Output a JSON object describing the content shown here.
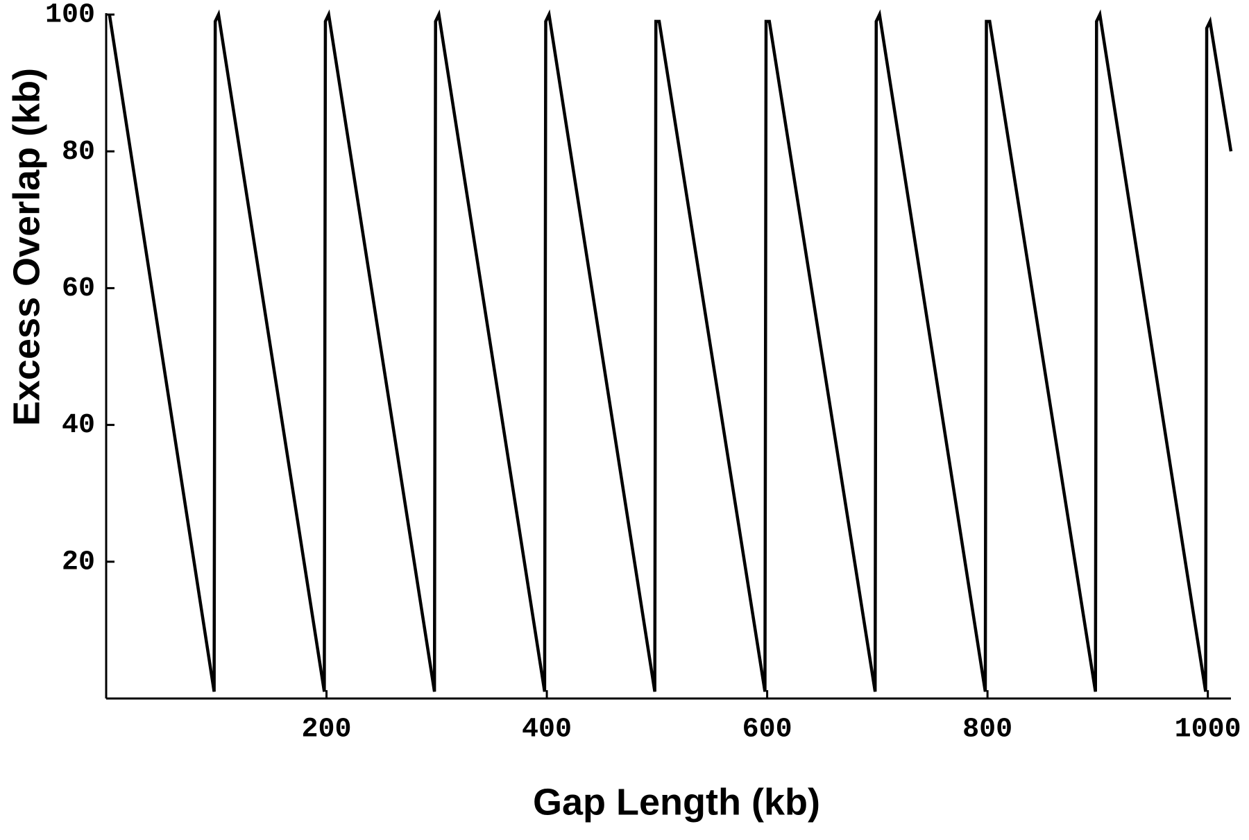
{
  "chart_data": {
    "type": "line",
    "x_label": "Gap Length (kb)",
    "y_label": "Excess Overlap (kb)",
    "x": [
      3,
      98,
      99,
      102,
      198,
      199,
      202,
      298,
      299,
      302,
      398,
      399,
      402,
      498,
      499,
      502,
      598,
      599,
      602,
      698,
      699,
      702,
      798,
      799,
      802,
      898,
      899,
      902,
      998,
      999,
      1002,
      1021
    ],
    "series": [
      {
        "color": "#000000",
        "values": [
          100,
          1,
          99,
          100,
          1,
          99,
          100,
          1,
          99,
          100,
          1,
          99,
          100,
          1,
          99,
          99,
          1,
          99,
          99,
          1,
          99,
          100,
          1,
          99,
          99,
          1,
          99,
          100,
          1,
          98,
          99,
          80
        ]
      }
    ],
    "xlim": [
      0,
      1021
    ],
    "ylim": [
      0,
      100
    ],
    "xticks": [
      200,
      400,
      600,
      800,
      1000
    ],
    "yticks": [
      20,
      40,
      60,
      80,
      100
    ]
  }
}
